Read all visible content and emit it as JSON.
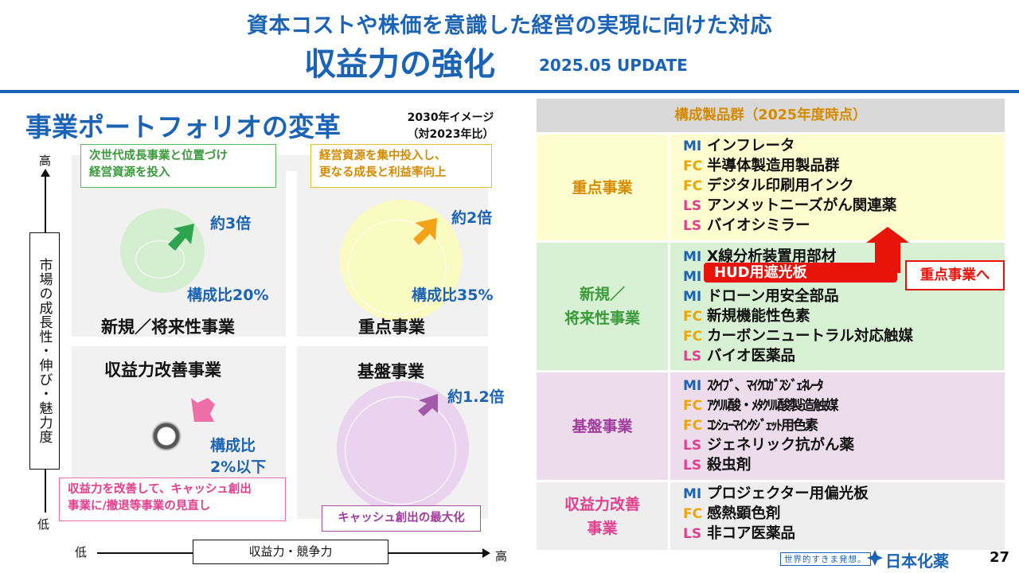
{
  "header": {
    "line1": "資本コストや株価を意識した経営の実現に向けた対応",
    "line2": "収益力の強化",
    "update": "2025.05 UPDATE"
  },
  "left": {
    "title": "事業ポートフォリオの変革",
    "note_line1": "2030年イメージ",
    "note_line2": "（対2023年比）",
    "y_high": "高",
    "y_low": "低",
    "y_label": "市場の成長性・伸び・魅力度",
    "x_low": "低",
    "x_high": "高",
    "x_label": "収益力・競争力",
    "callouts": {
      "green_1": "次世代成長事業と位置づけ",
      "green_2": "経営資源を投入",
      "yellow_1": "経営資源を集中投入し、",
      "yellow_2": "更なる成長と利益率向上",
      "pink_1": "収益力を改善して、キャッシュ創出",
      "pink_2": "事業に/撤退等事業の見直し",
      "purple": "キャッシュ創出の最大化"
    },
    "quadrants": {
      "new": "新規／将来性事業",
      "focus": "重点事業",
      "improve": "収益力改善事業",
      "base": "基盤事業"
    },
    "metrics": {
      "new_growth": "約3倍",
      "new_ratio": "構成比20%",
      "focus_growth": "約2倍",
      "focus_ratio": "構成比35%",
      "base_growth": "約1.2倍",
      "improve_ratio_1": "構成比",
      "improve_ratio_2": "2%以下"
    },
    "colors": {
      "green": "#d4efcf",
      "yellow": "#fafbc1",
      "purple": "#e9d3ee",
      "arrow_green": "#2ea44f",
      "arrow_orange": "#f5a21b",
      "arrow_pink": "#ee6fa8",
      "arrow_purple": "#a159a8"
    }
  },
  "right": {
    "title": "構成製品群（2025年度時点）",
    "focus": {
      "label": "重点事業",
      "items": [
        {
          "prefix": "MI",
          "text": "インフレータ"
        },
        {
          "prefix": "FC",
          "text": "半導体製造用製品群"
        },
        {
          "prefix": "FC",
          "text": "デジタル印刷用インク"
        },
        {
          "prefix": "LS",
          "text": "アンメットニーズがん関連薬"
        },
        {
          "prefix": "LS",
          "text": "バイオシミラー"
        }
      ]
    },
    "new": {
      "label_1": "新規／",
      "label_2": "将来性事業",
      "items": [
        {
          "prefix": "MI",
          "text": "X線分析装置用部材"
        },
        {
          "prefix": "MI",
          "text": ""
        },
        {
          "prefix": "MI",
          "text": "ドローン用安全部品"
        },
        {
          "prefix": "FC",
          "text": "新規機能性色素"
        },
        {
          "prefix": "FC",
          "text": "カーボンニュートラル対応触媒"
        },
        {
          "prefix": "LS",
          "text": "バイオ医薬品"
        }
      ],
      "highlight": "HUD用遮光板",
      "move_tag": "重点事業へ"
    },
    "base": {
      "label": "基盤事業",
      "items": [
        {
          "prefix": "MI",
          "text": "ｽｸｲﾌﾞ、ﾏｲｸﾛｶﾞｽｼﾞｪﾈﾚｰﾀ"
        },
        {
          "prefix": "FC",
          "text": "ｱｸﾘﾙ酸・ﾒﾀｸﾘﾙ酸製造触媒"
        },
        {
          "prefix": "FC",
          "text": "ｺﾝｼｭｰﾏｲﾝｸｼﾞｪｯﾄ用色素"
        },
        {
          "prefix": "LS",
          "text": "ジェネリック抗がん薬"
        },
        {
          "prefix": "LS",
          "text": "殺虫剤"
        }
      ]
    },
    "improve": {
      "label_1": "収益力改善",
      "label_2": "事業",
      "items": [
        {
          "prefix": "MI",
          "text": "プロジェクター用偏光板"
        },
        {
          "prefix": "FC",
          "text": "感熱顕色剤"
        },
        {
          "prefix": "LS",
          "text": "非コア医薬品"
        }
      ]
    },
    "colors": {
      "focus_bg": "#fdfdcf",
      "focus_label": "#d58b00",
      "new_bg": "#d8f0d3",
      "new_label": "#3a9a3a",
      "base_bg": "#ecdcec",
      "base_label": "#a13b9c",
      "improve_bg": "#eeeeee",
      "improve_label": "#e0408e",
      "highlight": "#e8140b"
    }
  },
  "footer": {
    "tagline": "世界的すきま発想。",
    "company": "日本化薬",
    "page": "27"
  }
}
